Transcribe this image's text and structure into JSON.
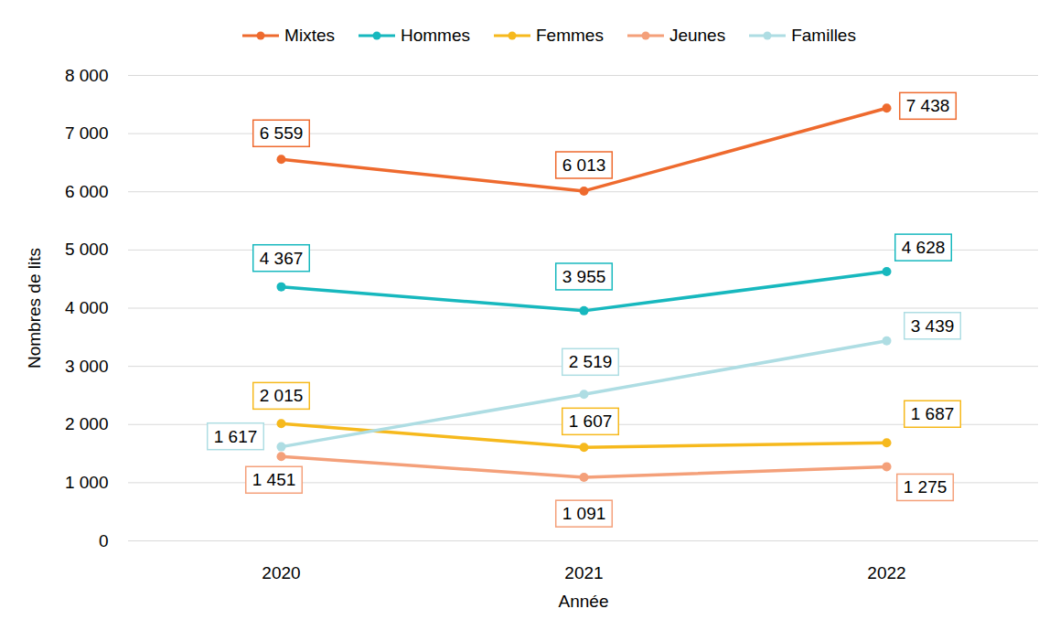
{
  "chart_data": {
    "type": "line",
    "categories": [
      "2020",
      "2021",
      "2022"
    ],
    "x_label": "Année",
    "y_label": "Nombres de lits",
    "series": [
      {
        "name": "Mixtes",
        "color": "#EE6A2E",
        "values": [
          6559,
          6013,
          7438
        ],
        "value_labels": [
          "6 559",
          "6 013",
          "7 438"
        ]
      },
      {
        "name": "Hommes",
        "color": "#17B8BE",
        "values": [
          4367,
          3955,
          4628
        ],
        "value_labels": [
          "4 367",
          "3 955",
          "4 628"
        ]
      },
      {
        "name": "Femmes",
        "color": "#F6B91D",
        "values": [
          2015,
          1607,
          1687
        ],
        "value_labels": [
          "2 015",
          "1 607",
          "1 687"
        ]
      },
      {
        "name": "Jeunes",
        "color": "#F4A07A",
        "values": [
          1451,
          1091,
          1275
        ],
        "value_labels": [
          "1 451",
          "1 091",
          "1 275"
        ]
      },
      {
        "name": "Familles",
        "color": "#AEDDE3",
        "values": [
          1617,
          2519,
          3439
        ],
        "value_labels": [
          "1 617",
          "2 519",
          "3 439"
        ]
      }
    ],
    "ylim": [
      0,
      8000
    ],
    "yticks": [
      0,
      {
        "value": 1000,
        "label": "1 000"
      },
      {
        "value": 2000,
        "label": "2 000"
      },
      {
        "value": 3000,
        "label": "3 000"
      },
      {
        "value": 4000,
        "label": "4 000"
      },
      {
        "value": 5000,
        "label": "5 000"
      },
      {
        "value": 6000,
        "label": "6 000"
      },
      {
        "value": 7000,
        "label": "7 000"
      },
      {
        "value": 8000,
        "label": "8 000"
      }
    ],
    "grid": true,
    "legend": "top",
    "marker": "circle",
    "data_labels": true
  }
}
